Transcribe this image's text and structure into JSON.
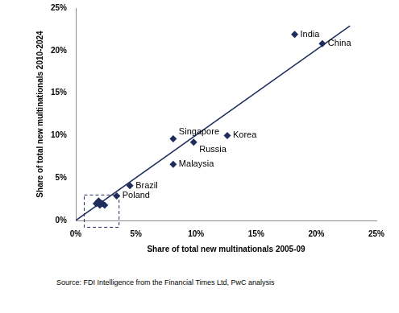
{
  "chart_data": {
    "type": "scatter",
    "x_label": "Share of total new multinationals 2005-09",
    "y_label": "Share of total new multinationals 2010-2024",
    "source": "Source: FDI Intelligence from the Financial Times Ltd, PwC analysis",
    "xlim": [
      0,
      25
    ],
    "ylim": [
      0,
      25
    ],
    "xticks": [
      {
        "value": 0,
        "label": "0%"
      },
      {
        "value": 5,
        "label": "5%"
      },
      {
        "value": 10,
        "label": "10%"
      },
      {
        "value": 15,
        "label": "15%"
      },
      {
        "value": 20,
        "label": "20%"
      },
      {
        "value": 25,
        "label": "25%"
      }
    ],
    "yticks": [
      {
        "value": 0,
        "label": "0%"
      },
      {
        "value": 5,
        "label": "5%"
      },
      {
        "value": 10,
        "label": "10%"
      },
      {
        "value": 15,
        "label": "15%"
      },
      {
        "value": 20,
        "label": "20%"
      },
      {
        "value": 25,
        "label": "25%"
      }
    ],
    "grid": false,
    "series": [
      {
        "type": "scatter",
        "marker": "diamond",
        "color": "#1f2d5c",
        "x": [
          18.2,
          20.5,
          8.1,
          9.8,
          12.6,
          8.1,
          4.5,
          3.4,
          1.7,
          1.9,
          2.2,
          2.4,
          2.0
        ],
        "y": [
          21.9,
          20.8,
          9.6,
          9.2,
          10.0,
          6.6,
          4.1,
          2.9,
          2.0,
          2.3,
          2.0,
          1.8,
          1.8
        ],
        "labels": [
          "India",
          "China",
          "Singapore",
          "Russia",
          "Korea",
          "Malaysia",
          "Brazil",
          "Poland",
          null,
          null,
          null,
          null,
          null
        ]
      },
      {
        "type": "line",
        "line_style": "solid",
        "color": "#1f2d5c",
        "x": [
          0,
          22.8
        ],
        "y": [
          0,
          22.9
        ]
      }
    ],
    "highlight_box": {
      "x": [
        0.7,
        3.6
      ],
      "y": [
        -0.8,
        3.0
      ],
      "line_style": "dashed",
      "color": "#1f2d5c"
    }
  }
}
